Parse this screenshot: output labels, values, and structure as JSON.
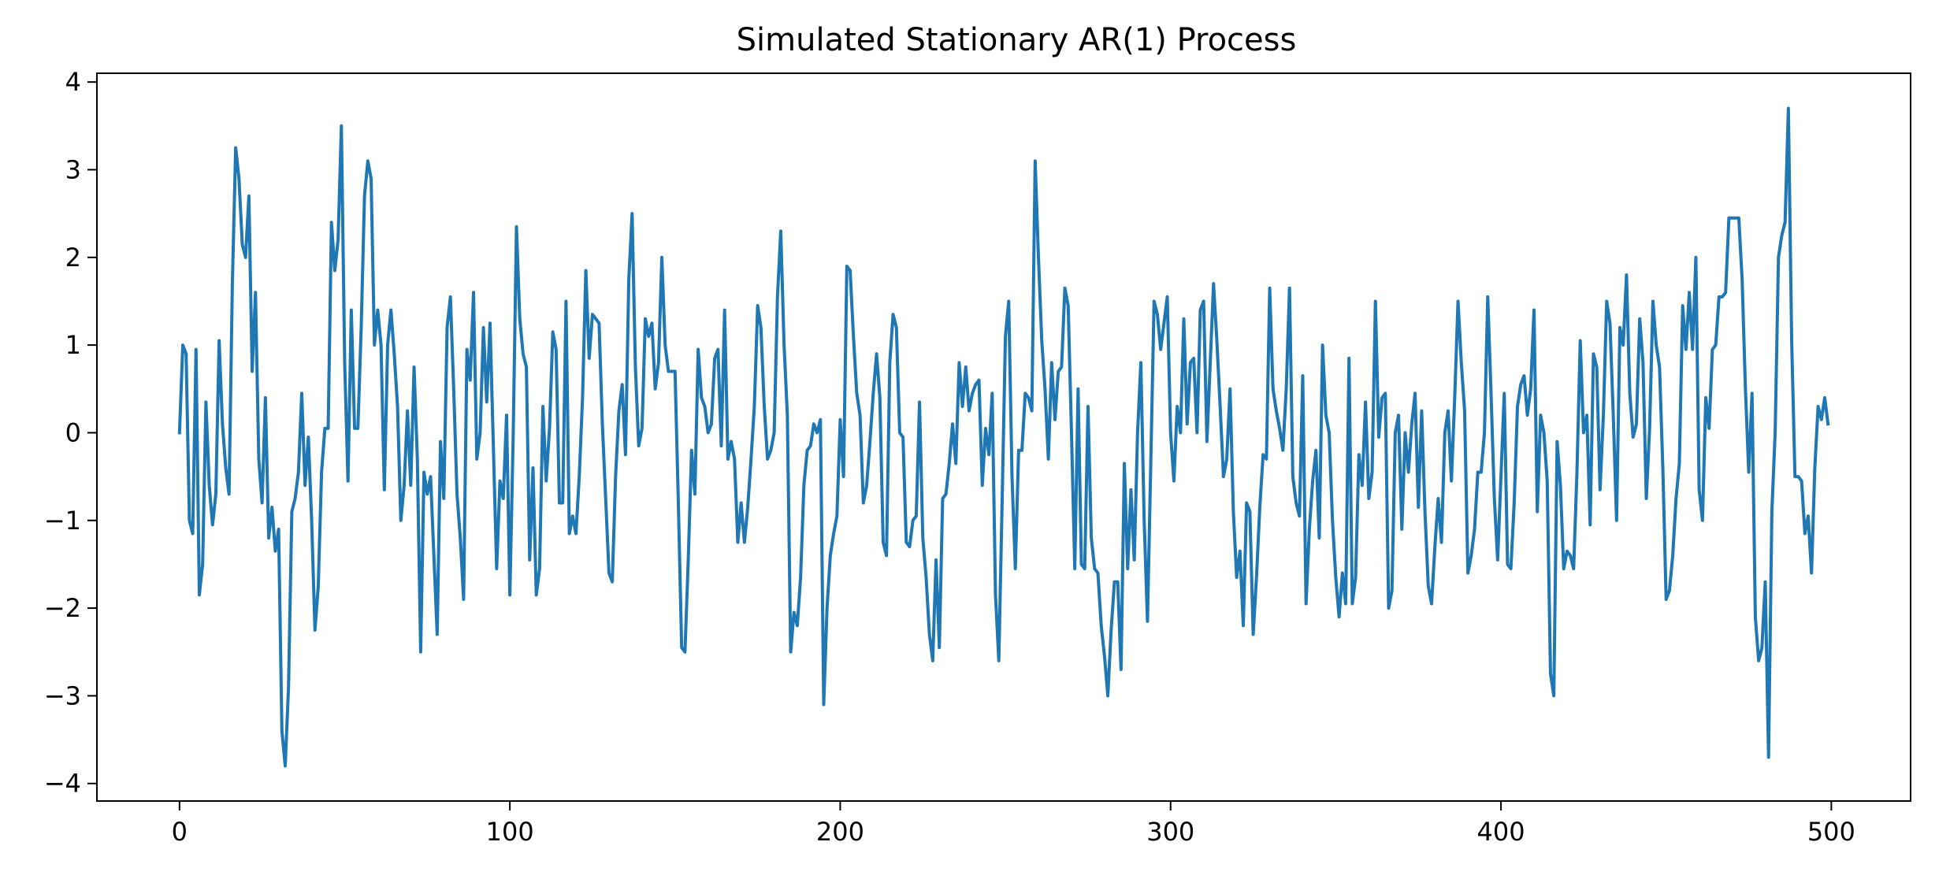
{
  "chart_data": {
    "type": "line",
    "title": "Simulated Stationary AR(1) Process",
    "xlabel": "",
    "ylabel": "",
    "xlim": [
      -25,
      524
    ],
    "ylim": [
      -4.2,
      4.1
    ],
    "grid": false,
    "legend": "none",
    "x_ticks": [
      0,
      100,
      200,
      300,
      400,
      500
    ],
    "x_tick_labels": [
      "0",
      "100",
      "200",
      "300",
      "400",
      "500"
    ],
    "y_ticks": [
      4,
      3,
      2,
      1,
      0,
      -1,
      -2,
      -3,
      -4
    ],
    "y_tick_labels": [
      "4",
      "3",
      "2",
      "1",
      "0",
      "−1",
      "−2",
      "−3",
      "−4"
    ],
    "series": [
      {
        "color": "#1f77b4",
        "x_start": 0,
        "x_step": 1,
        "values": [
          0.0,
          1.0,
          0.9,
          -1.0,
          -1.15,
          0.95,
          -1.85,
          -1.5,
          0.35,
          -0.6,
          -1.05,
          -0.7,
          1.05,
          0.1,
          -0.4,
          -0.7,
          1.7,
          3.25,
          2.9,
          2.15,
          2.0,
          2.7,
          0.7,
          1.6,
          -0.3,
          -0.8,
          0.4,
          -1.2,
          -0.85,
          -1.35,
          -1.1,
          -3.4,
          -3.8,
          -2.9,
          -0.9,
          -0.75,
          -0.45,
          0.45,
          -0.6,
          -0.05,
          -1.0,
          -2.25,
          -1.75,
          -0.45,
          0.05,
          0.05,
          2.4,
          1.85,
          2.2,
          3.5,
          0.8,
          -0.55,
          1.4,
          0.05,
          0.05,
          1.2,
          2.7,
          3.1,
          2.9,
          1.0,
          1.4,
          1.0,
          -0.65,
          1.0,
          1.4,
          0.9,
          0.3,
          -1.0,
          -0.6,
          0.25,
          -0.6,
          0.75,
          -0.3,
          -2.5,
          -0.45,
          -0.7,
          -0.5,
          -1.4,
          -2.3,
          -0.1,
          -0.75,
          1.2,
          1.55,
          0.5,
          -0.7,
          -1.2,
          -1.9,
          0.95,
          0.6,
          1.6,
          -0.3,
          0.0,
          1.2,
          0.35,
          1.25,
          -0.15,
          -1.55,
          -0.55,
          -0.75,
          0.2,
          -1.85,
          -0.05,
          2.35,
          1.3,
          0.9,
          0.75,
          -1.45,
          -0.4,
          -1.85,
          -1.55,
          0.3,
          -0.55,
          0.05,
          1.15,
          0.95,
          -0.8,
          -0.8,
          1.5,
          -1.15,
          -0.95,
          -1.15,
          -0.5,
          0.4,
          1.85,
          0.85,
          1.35,
          1.3,
          1.25,
          0.1,
          -0.75,
          -1.6,
          -1.7,
          -0.5,
          0.25,
          0.55,
          -0.25,
          1.75,
          2.5,
          0.75,
          -0.15,
          0.05,
          1.3,
          1.1,
          1.25,
          0.5,
          0.8,
          2.0,
          1.0,
          0.7,
          0.7,
          0.7,
          -0.8,
          -2.45,
          -2.5,
          -1.45,
          -0.2,
          -0.7,
          0.95,
          0.4,
          0.3,
          0.0,
          0.1,
          0.85,
          0.95,
          -0.15,
          1.4,
          -0.3,
          -0.1,
          -0.3,
          -1.25,
          -0.8,
          -1.25,
          -0.85,
          -0.3,
          0.3,
          1.45,
          1.2,
          0.3,
          -0.3,
          -0.2,
          0.0,
          1.55,
          2.3,
          1.0,
          0.2,
          -2.5,
          -2.05,
          -2.2,
          -1.65,
          -0.6,
          -0.2,
          -0.15,
          0.1,
          0.0,
          0.15,
          -3.1,
          -2.0,
          -1.4,
          -1.15,
          -0.95,
          0.15,
          -0.5,
          1.9,
          1.85,
          1.1,
          0.45,
          0.2,
          -0.8,
          -0.6,
          -0.1,
          0.45,
          0.9,
          0.4,
          -1.25,
          -1.4,
          0.8,
          1.35,
          1.2,
          0.0,
          -0.05,
          -1.25,
          -1.3,
          -1.0,
          -0.95,
          0.35,
          -1.2,
          -1.65,
          -2.3,
          -2.6,
          -1.45,
          -2.45,
          -0.75,
          -0.7,
          -0.35,
          0.1,
          -0.35,
          0.8,
          0.3,
          0.75,
          0.25,
          0.45,
          0.55,
          0.6,
          -0.6,
          0.05,
          -0.25,
          0.45,
          -1.85,
          -2.6,
          -0.8,
          1.1,
          1.5,
          -0.5,
          -1.55,
          -0.2,
          -0.2,
          0.45,
          0.4,
          0.25,
          3.1,
          2.0,
          1.05,
          0.5,
          -0.3,
          0.8,
          0.15,
          0.7,
          0.75,
          1.65,
          1.45,
          0.0,
          -1.55,
          0.5,
          -1.5,
          -1.55,
          0.3,
          -1.2,
          -1.55,
          -1.6,
          -2.2,
          -2.55,
          -3.0,
          -2.25,
          -1.7,
          -1.7,
          -2.7,
          -0.35,
          -1.55,
          -0.65,
          -1.45,
          0.0,
          0.8,
          -1.0,
          -2.15,
          -0.35,
          1.5,
          1.35,
          0.95,
          1.25,
          1.55,
          0.0,
          -0.55,
          0.3,
          0.0,
          1.3,
          0.1,
          0.8,
          0.85,
          0.0,
          1.4,
          1.5,
          -0.1,
          0.8,
          1.7,
          1.05,
          0.3,
          -0.5,
          -0.3,
          0.5,
          -0.9,
          -1.65,
          -1.35,
          -2.2,
          -0.8,
          -0.9,
          -2.3,
          -1.65,
          -0.85,
          -0.25,
          -0.3,
          1.65,
          0.5,
          0.25,
          0.05,
          -0.2,
          0.5,
          1.65,
          -0.5,
          -0.8,
          -0.95,
          0.65,
          -1.95,
          -1.1,
          -0.55,
          -0.2,
          -1.2,
          1.0,
          0.2,
          0.0,
          -1.0,
          -1.65,
          -2.1,
          -1.6,
          -1.95,
          0.85,
          -1.95,
          -1.65,
          -0.25,
          -0.6,
          0.35,
          -0.75,
          -0.45,
          1.5,
          -0.05,
          0.4,
          0.45,
          -2.0,
          -1.8,
          0.0,
          0.2,
          -1.1,
          0.0,
          -0.45,
          0.1,
          0.45,
          -0.85,
          0.25,
          -0.9,
          -1.75,
          -1.95,
          -1.3,
          -0.75,
          -1.25,
          0.0,
          0.25,
          -0.55,
          0.4,
          1.5,
          0.8,
          0.25,
          -1.6,
          -1.4,
          -1.1,
          -0.45,
          -0.45,
          0.0,
          1.55,
          0.45,
          -0.75,
          -1.45,
          -0.5,
          0.45,
          -1.5,
          -1.55,
          -0.8,
          0.3,
          0.55,
          0.65,
          0.2,
          0.5,
          1.4,
          -0.9,
          0.2,
          0.0,
          -0.55,
          -2.75,
          -3.0,
          -0.1,
          -0.6,
          -1.55,
          -1.35,
          -1.4,
          -1.55,
          -0.45,
          1.05,
          0.0,
          0.2,
          -1.05,
          0.9,
          0.75,
          -0.65,
          0.2,
          1.5,
          1.25,
          0.2,
          -1.0,
          1.2,
          1.0,
          1.8,
          0.45,
          -0.05,
          0.1,
          1.3,
          0.8,
          -0.75,
          0.05,
          1.5,
          1.0,
          0.75,
          -0.4,
          -1.9,
          -1.8,
          -1.4,
          -0.75,
          -0.35,
          1.45,
          0.95,
          1.6,
          0.95,
          2.0,
          -0.65,
          -1.0,
          0.4,
          0.05,
          0.95,
          1.0,
          1.55,
          1.55,
          1.6,
          2.45,
          2.45,
          2.45,
          2.45,
          1.75,
          0.5,
          -0.45,
          0.45,
          -2.1,
          -2.6,
          -2.45,
          -1.7,
          -3.7,
          -0.9,
          0.0,
          2.0,
          2.25,
          2.4,
          3.7,
          1.05,
          -0.5,
          -0.5,
          -0.55,
          -1.15,
          -0.95,
          -1.6,
          -0.4,
          0.3,
          0.15,
          0.4,
          0.1
        ]
      }
    ]
  }
}
